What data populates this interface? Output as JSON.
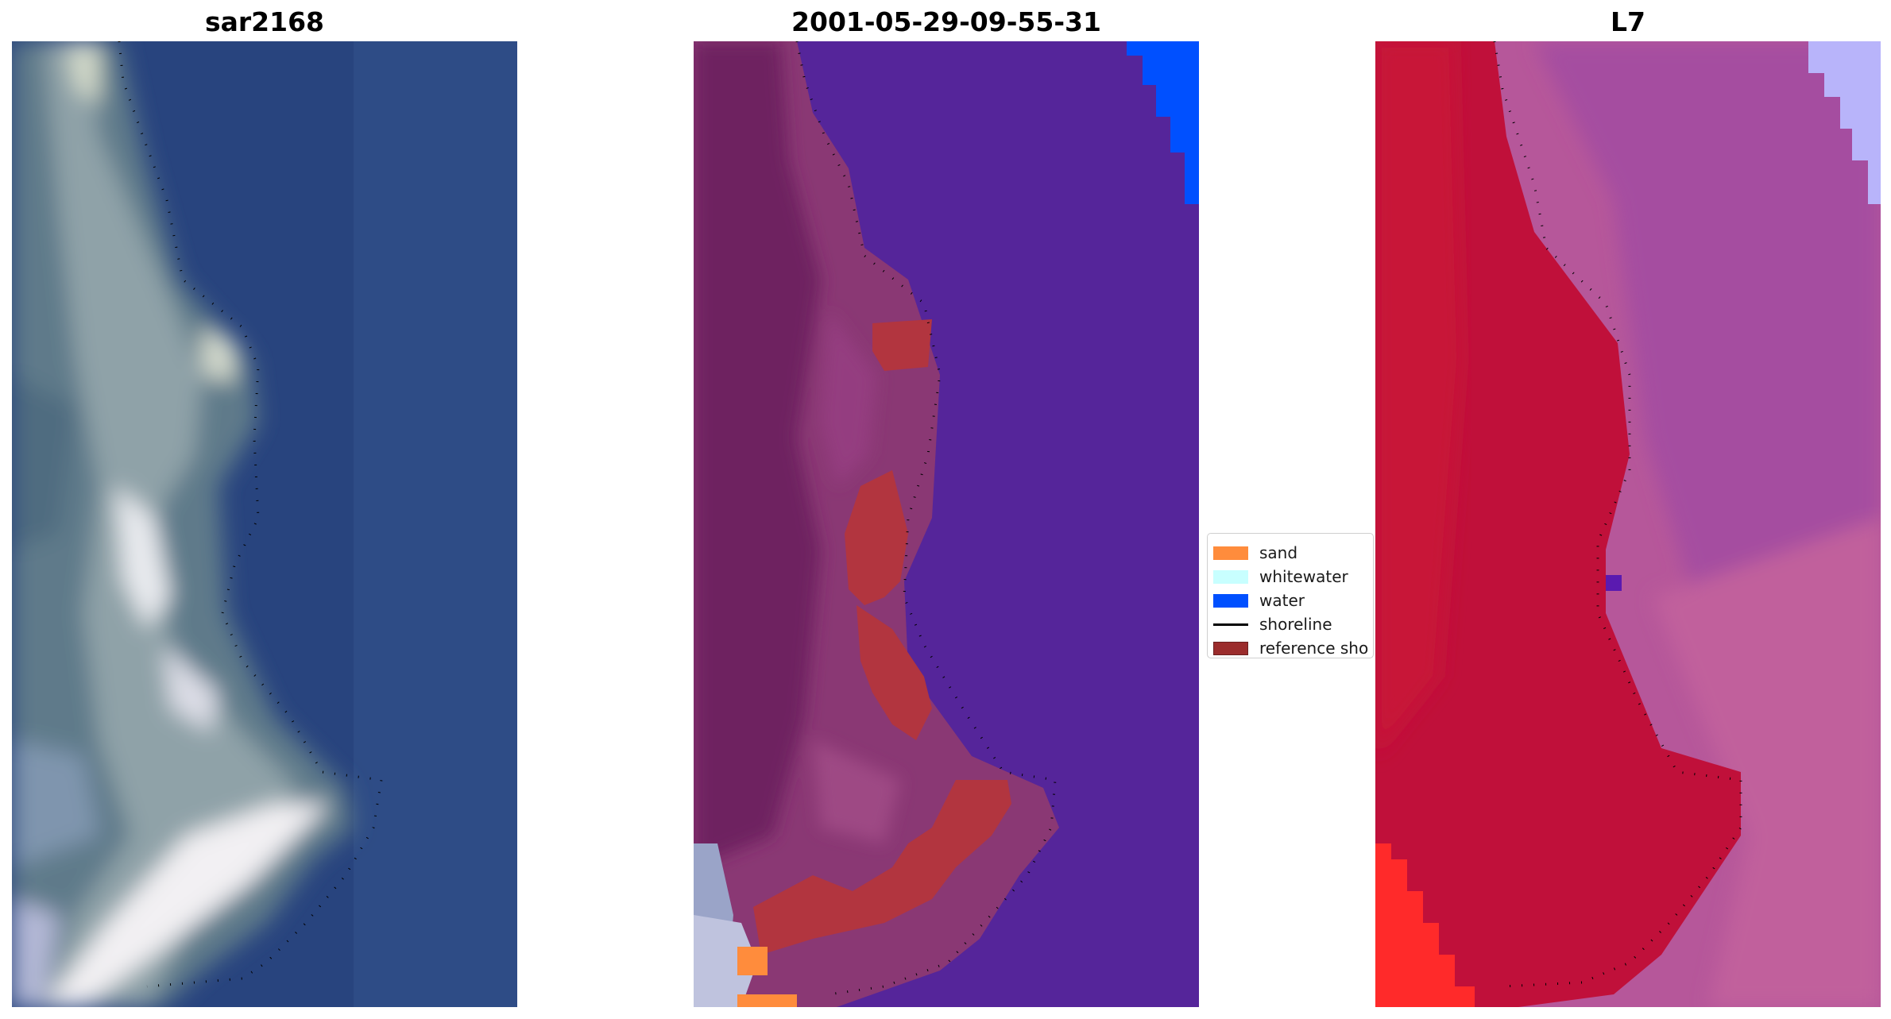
{
  "panels": [
    {
      "title": "sar2168"
    },
    {
      "title": "2001-05-29-09-55-31"
    },
    {
      "title": "L7"
    }
  ],
  "legend": [
    {
      "label": "sand",
      "color": "#FF8C3C",
      "kind": "patch"
    },
    {
      "label": "whitewater",
      "color": "#C8FFFF",
      "kind": "patch"
    },
    {
      "label": "water",
      "color": "#0050FF",
      "kind": "patch"
    },
    {
      "label": "shoreline",
      "color": "#000000",
      "kind": "line"
    },
    {
      "label": "reference sho",
      "color": "#9B2C2C",
      "kind": "patch"
    }
  ]
}
